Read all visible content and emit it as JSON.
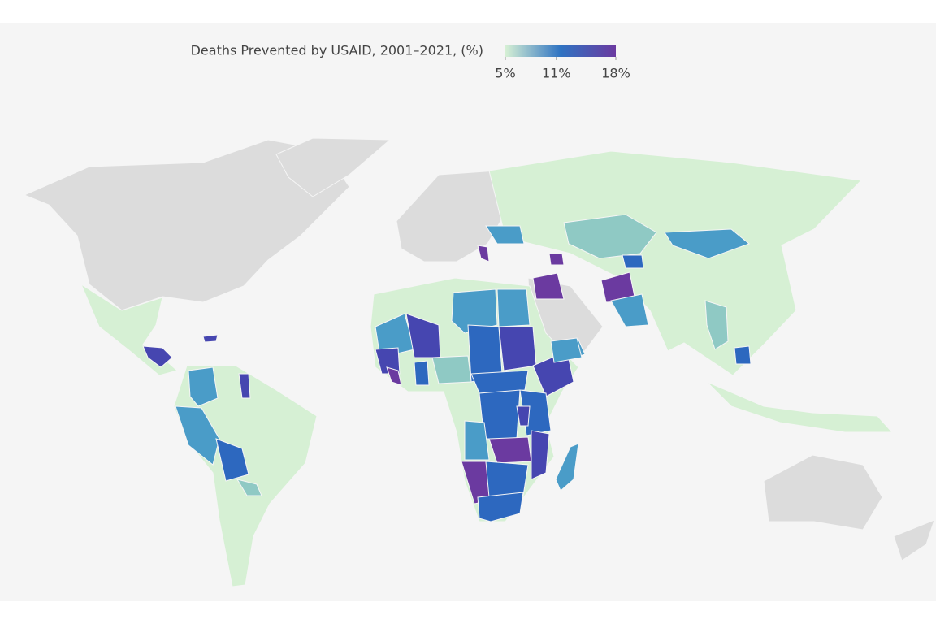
{
  "legend": {
    "title": "Deaths Prevented by USAID, 2001–2021, (%)",
    "range": [
      5,
      18
    ],
    "ticks": [
      {
        "value": 5,
        "label": "5%"
      },
      {
        "value": 11,
        "label": "11%"
      },
      {
        "value": 18,
        "label": "18%"
      }
    ],
    "colors": [
      "#d6f0d4",
      "#2f73c2",
      "#6b3aa0"
    ]
  }
}
